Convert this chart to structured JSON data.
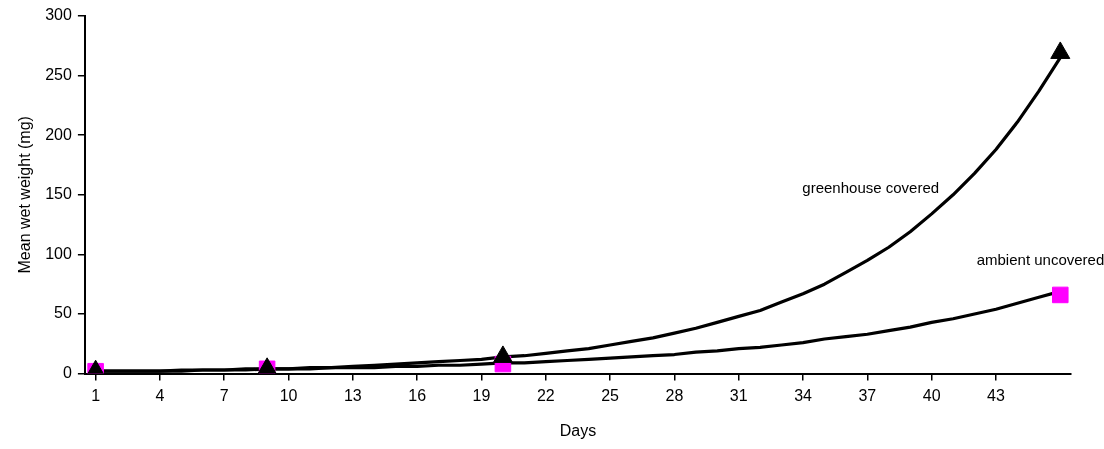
{
  "chart_data": {
    "type": "line",
    "xlabel": "Days",
    "ylabel": "Mean wet weight (mg)",
    "x": [
      1,
      2,
      3,
      4,
      5,
      6,
      7,
      8,
      9,
      10,
      11,
      12,
      13,
      14,
      15,
      16,
      17,
      18,
      19,
      20,
      21,
      22,
      23,
      24,
      25,
      26,
      27,
      28,
      29,
      30,
      31,
      32,
      33,
      34,
      35,
      36,
      37,
      38,
      39,
      40,
      41,
      42,
      43,
      44,
      45,
      46
    ],
    "xlim": [
      0.5,
      46.5
    ],
    "xticks": [
      1,
      4,
      7,
      10,
      13,
      16,
      19,
      22,
      25,
      28,
      31,
      34,
      37,
      40,
      43
    ],
    "ylim": [
      0,
      300
    ],
    "yticks": [
      0,
      50,
      100,
      150,
      200,
      250,
      300
    ],
    "series": [
      {
        "name": "greenhouse covered",
        "color": "#000000",
        "marker": "none",
        "values": [
          2,
          2,
          2,
          2,
          2,
          3,
          3,
          4,
          4,
          4,
          5,
          5,
          6,
          7,
          8,
          9,
          10,
          11,
          12,
          14,
          15,
          17,
          19,
          21,
          24,
          27,
          30,
          34,
          38,
          43,
          48,
          53,
          60,
          67,
          75,
          85,
          95,
          106,
          119,
          134,
          150,
          168,
          188,
          211,
          237,
          265
        ]
      },
      {
        "name": "ambient uncovered",
        "color": "#000000",
        "marker": "none",
        "values": [
          2,
          2,
          2,
          2,
          3,
          3,
          3,
          3,
          4,
          4,
          4,
          5,
          5,
          5,
          6,
          6,
          7,
          7,
          8,
          9,
          9,
          10,
          11,
          12,
          13,
          14,
          15,
          16,
          18,
          19,
          21,
          22,
          24,
          26,
          29,
          31,
          33,
          36,
          39,
          43,
          46,
          50,
          54,
          59,
          64,
          69
        ]
      },
      {
        "type": "scatter",
        "color": "#000000",
        "marker": "triangle",
        "x": [
          1,
          9,
          20,
          46
        ],
        "values": [
          2,
          4,
          14,
          269
        ]
      },
      {
        "type": "scatter",
        "color": "#ff00ff",
        "marker": "square",
        "x": [
          1,
          9,
          20,
          46
        ],
        "values": [
          2,
          4,
          8,
          66
        ]
      }
    ]
  }
}
